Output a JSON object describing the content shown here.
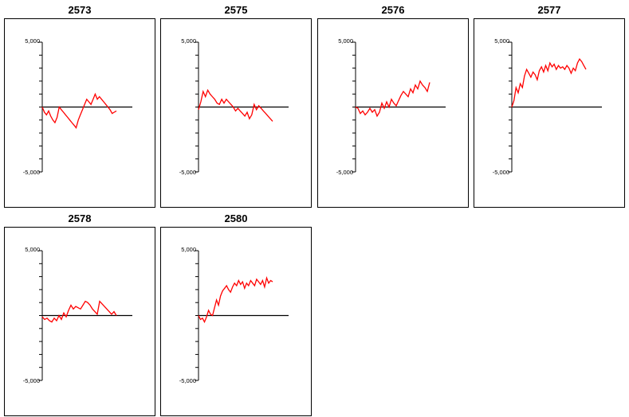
{
  "colors": {
    "line": "#ff0000",
    "axis": "#000000",
    "background": "#ffffff"
  },
  "chart_data": [
    {
      "type": "line",
      "title": "2573",
      "xlabel": "",
      "ylabel": "",
      "ylim": [
        -5000,
        5000
      ],
      "yticks": [
        "5,000",
        "-5,000"
      ],
      "grid": false,
      "legend": "none",
      "series": [
        {
          "values": [
            0,
            -400,
            -600,
            -300,
            -700,
            -1000,
            -1200,
            -800,
            0,
            -200,
            -400,
            -600,
            -800,
            -1000,
            -1200,
            -1400,
            -1600,
            -1000,
            -600,
            -200,
            200,
            600,
            400,
            200,
            600,
            1000,
            600,
            800,
            600,
            400,
            200,
            0,
            -200,
            -500,
            -400,
            -300
          ]
        }
      ]
    },
    {
      "type": "line",
      "title": "2575",
      "xlabel": "",
      "ylabel": "",
      "ylim": [
        -5000,
        5000
      ],
      "yticks": [
        "5,000",
        "-5,000"
      ],
      "grid": false,
      "legend": "none",
      "series": [
        {
          "values": [
            -200,
            400,
            1200,
            800,
            1300,
            1000,
            800,
            600,
            300,
            200,
            600,
            300,
            600,
            400,
            200,
            0,
            -300,
            -100,
            -300,
            -500,
            -700,
            -400,
            -900,
            -600,
            200,
            -200,
            100,
            -100,
            -300,
            -500,
            -700,
            -900,
            -1100
          ]
        }
      ]
    },
    {
      "type": "line",
      "title": "2576",
      "xlabel": "",
      "ylabel": "",
      "ylim": [
        -5000,
        5000
      ],
      "yticks": [
        "5,000",
        "-5,000"
      ],
      "grid": false,
      "legend": "none",
      "series": [
        {
          "values": [
            0,
            -100,
            -500,
            -300,
            -600,
            -400,
            -100,
            -400,
            -200,
            -700,
            -400,
            300,
            -100,
            400,
            0,
            600,
            300,
            100,
            500,
            900,
            1200,
            1000,
            800,
            1400,
            1100,
            1700,
            1400,
            2000,
            1700,
            1500,
            1200,
            1900
          ]
        }
      ]
    },
    {
      "type": "line",
      "title": "2577",
      "xlabel": "",
      "ylabel": "",
      "ylim": [
        -5000,
        5000
      ],
      "yticks": [
        "5,000",
        "-5,000"
      ],
      "grid": false,
      "legend": "none",
      "series": [
        {
          "values": [
            0,
            500,
            1500,
            1100,
            1800,
            1500,
            2400,
            2900,
            2600,
            2300,
            2700,
            2500,
            2100,
            2800,
            3100,
            2700,
            3200,
            2800,
            3400,
            3100,
            3300,
            2900,
            3200,
            3000,
            3100,
            2900,
            3200,
            3000,
            2600,
            3000,
            2800,
            3400,
            3700,
            3500,
            3200,
            2900
          ]
        }
      ]
    },
    {
      "type": "line",
      "title": "2578",
      "xlabel": "",
      "ylabel": "",
      "ylim": [
        -5000,
        5000
      ],
      "yticks": [
        "5,000",
        "-5,000"
      ],
      "grid": false,
      "legend": "none",
      "series": [
        {
          "values": [
            -100,
            -300,
            -200,
            -400,
            -500,
            -200,
            -400,
            0,
            -300,
            200,
            -100,
            400,
            800,
            500,
            700,
            600,
            500,
            800,
            1100,
            1000,
            800,
            500,
            300,
            100,
            1100,
            900,
            700,
            500,
            300,
            100,
            300,
            0
          ]
        }
      ]
    },
    {
      "type": "line",
      "title": "2580",
      "xlabel": "",
      "ylabel": "",
      "ylim": [
        -5000,
        5000
      ],
      "yticks": [
        "5,000",
        "-5,000"
      ],
      "grid": false,
      "legend": "none",
      "series": [
        {
          "values": [
            0,
            -300,
            -200,
            -500,
            -100,
            400,
            100,
            0,
            600,
            1200,
            800,
            1500,
            1900,
            2100,
            2300,
            2000,
            1800,
            2200,
            2500,
            2300,
            2700,
            2400,
            2600,
            2100,
            2500,
            2300,
            2700,
            2500,
            2300,
            2800,
            2600,
            2400,
            2700,
            2200,
            2900,
            2500,
            2700,
            2600
          ]
        }
      ]
    }
  ]
}
